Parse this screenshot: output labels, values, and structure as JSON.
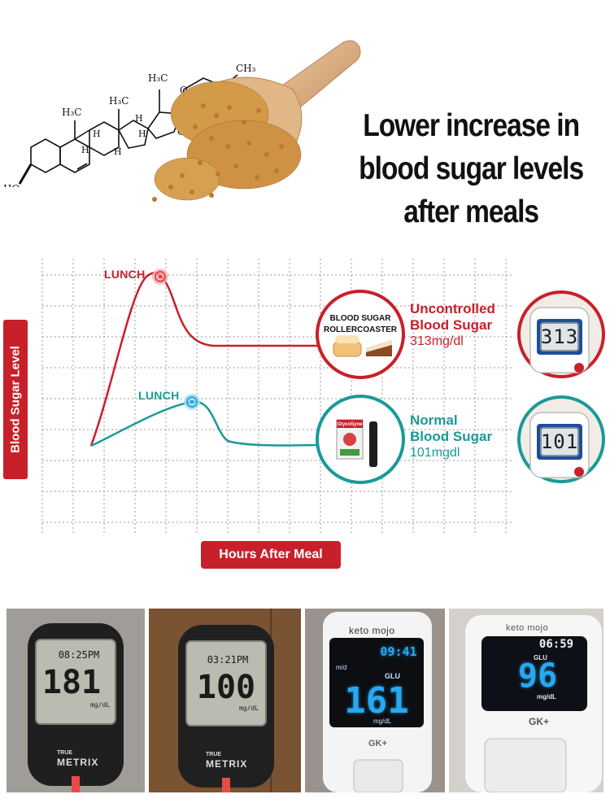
{
  "headline": {
    "line1": "Lower increase in",
    "line2": "blood sugar levels",
    "line3": "after meals"
  },
  "molecule": {
    "ch3_top": "H₃C",
    "ch3_right": "CH₃",
    "ch3_mid": "H₃C",
    "ch3_left": "H₃C",
    "oxygen_1": "O",
    "oxygen_2": "O",
    "h1": "H",
    "h2": "H",
    "h3": "H",
    "h4": "H",
    "h5": "H",
    "ho": "HO"
  },
  "chart": {
    "ylabel": "Blood Sugar Level",
    "xlabel": "Hours After Meal",
    "peak_label_red": "LUNCH",
    "peak_label_teal": "LUNCH",
    "uncontrolled": {
      "line1": "Uncontrolled",
      "line2": "Blood Sugar",
      "value": "313mg/dl",
      "badge_line1": "BLOOD SUGAR",
      "badge_line2": "ROLLERCOASTER",
      "meter_reading": "313"
    },
    "normal": {
      "line1": "Normal",
      "line2": "Blood Sugar",
      "value": "101mgdl",
      "product_label": "GlycoSyne",
      "meter_reading": "101"
    }
  },
  "colors": {
    "red": "#c8202a",
    "teal": "#1a9a98",
    "grid": "#9a9a9a"
  },
  "photos": [
    {
      "time": "08:25PM",
      "reading": "181",
      "unit": "mg/dL",
      "brand_top": "TRUE",
      "brand": "METRIX"
    },
    {
      "time": "03:21PM",
      "reading": "100",
      "unit": "mg/dL",
      "brand_top": "TRUE",
      "brand": "METRIX"
    },
    {
      "brand": "keto mojo",
      "time": "09:41",
      "mode": "GLU",
      "mode_left": "m/d",
      "reading": "161",
      "unit": "mg/dL",
      "model": "GK+"
    },
    {
      "brand": "keto mojo",
      "time": "06:59",
      "mode": "GLU",
      "reading": "96",
      "unit": "mg/dL",
      "model": "GK+"
    }
  ]
}
